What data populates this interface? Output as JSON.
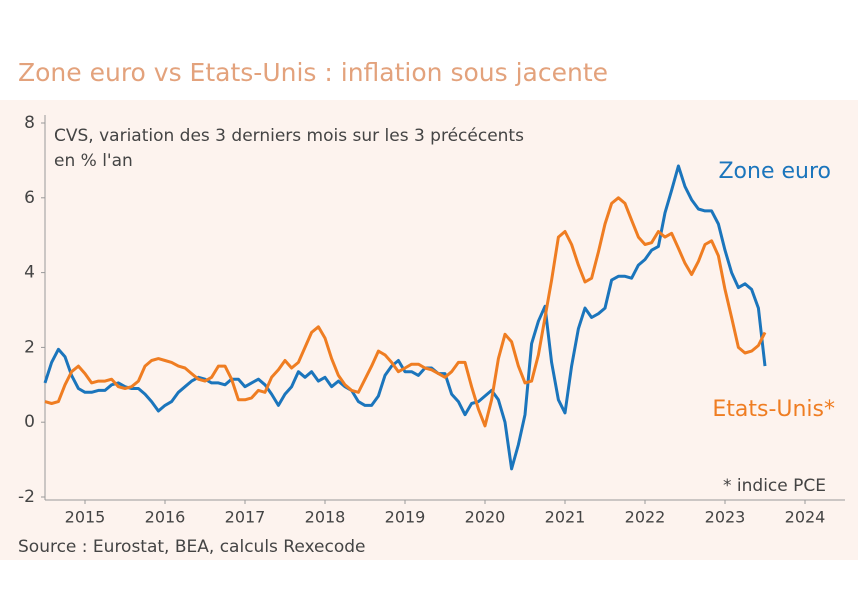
{
  "chart_data": {
    "type": "line",
    "title": "Zone euro vs Etats-Unis : inflation sous jacente",
    "subtitle": [
      "CVS, variation des 3 derniers mois sur les 3 précécents",
      "en % l'an"
    ],
    "note": "* indice PCE",
    "source": "Source : Eurostat, BEA, calculs Rexecode",
    "x": [
      2014.5,
      2014.583,
      2014.667,
      2014.75,
      2014.833,
      2014.917,
      2015,
      2015.083,
      2015.167,
      2015.25,
      2015.333,
      2015.417,
      2015.5,
      2015.583,
      2015.667,
      2015.75,
      2015.833,
      2015.917,
      2016,
      2016.083,
      2016.167,
      2016.25,
      2016.333,
      2016.417,
      2016.5,
      2016.583,
      2016.667,
      2016.75,
      2016.833,
      2016.917,
      2017,
      2017.083,
      2017.167,
      2017.25,
      2017.333,
      2017.417,
      2017.5,
      2017.583,
      2017.667,
      2017.75,
      2017.833,
      2017.917,
      2018,
      2018.083,
      2018.167,
      2018.25,
      2018.333,
      2018.417,
      2018.5,
      2018.583,
      2018.667,
      2018.75,
      2018.833,
      2018.917,
      2019,
      2019.083,
      2019.167,
      2019.25,
      2019.333,
      2019.417,
      2019.5,
      2019.583,
      2019.667,
      2019.75,
      2019.833,
      2019.917,
      2020,
      2020.083,
      2020.167,
      2020.25,
      2020.333,
      2020.417,
      2020.5,
      2020.583,
      2020.667,
      2020.75,
      2020.833,
      2020.917,
      2021,
      2021.083,
      2021.167,
      2021.25,
      2021.333,
      2021.417,
      2021.5,
      2021.583,
      2021.667,
      2021.75,
      2021.833,
      2021.917,
      2022,
      2022.083,
      2022.167,
      2022.25,
      2022.333,
      2022.417,
      2022.5,
      2022.583,
      2022.667,
      2022.75,
      2022.833,
      2022.917,
      2023,
      2023.083,
      2023.167,
      2023.25,
      2023.333,
      2023.417,
      2023.5
    ],
    "series": [
      {
        "name": "Zone euro",
        "color": "#1b75bc",
        "values": [
          1.05,
          1.6,
          1.95,
          1.75,
          1.25,
          0.9,
          0.8,
          0.8,
          0.85,
          0.85,
          1.0,
          1.05,
          0.95,
          0.9,
          0.9,
          0.75,
          0.55,
          0.3,
          0.45,
          0.55,
          0.8,
          0.95,
          1.1,
          1.2,
          1.15,
          1.05,
          1.05,
          1.0,
          1.15,
          1.15,
          0.95,
          1.05,
          1.15,
          1.0,
          0.75,
          0.45,
          0.75,
          0.95,
          1.35,
          1.2,
          1.35,
          1.1,
          1.2,
          0.95,
          1.1,
          0.95,
          0.85,
          0.55,
          0.45,
          0.45,
          0.7,
          1.25,
          1.5,
          1.65,
          1.35,
          1.35,
          1.25,
          1.45,
          1.45,
          1.3,
          1.3,
          0.75,
          0.55,
          0.2,
          0.5,
          0.55,
          0.7,
          0.85,
          0.6,
          0.0,
          -1.25,
          -0.6,
          0.2,
          2.1,
          2.7,
          3.1,
          1.6,
          0.6,
          0.25,
          1.5,
          2.5,
          3.05,
          2.8,
          2.9,
          3.05,
          3.8,
          3.9,
          3.9,
          3.85,
          4.2,
          4.35,
          4.6,
          4.7,
          5.6,
          6.2,
          6.85,
          6.3,
          5.95,
          5.7,
          5.65,
          5.65,
          5.3,
          4.6,
          4.0,
          3.6,
          3.7,
          3.55,
          3.05,
          1.5
        ]
      },
      {
        "name": "Etats-Unis*",
        "color": "#ef7d22",
        "values": [
          0.55,
          0.5,
          0.55,
          1.0,
          1.35,
          1.5,
          1.3,
          1.05,
          1.1,
          1.1,
          1.15,
          0.95,
          0.9,
          0.95,
          1.1,
          1.5,
          1.65,
          1.7,
          1.65,
          1.6,
          1.5,
          1.45,
          1.3,
          1.15,
          1.1,
          1.2,
          1.5,
          1.5,
          1.15,
          0.6,
          0.6,
          0.65,
          0.85,
          0.8,
          1.2,
          1.4,
          1.65,
          1.45,
          1.6,
          2.0,
          2.4,
          2.55,
          2.25,
          1.7,
          1.25,
          1.0,
          0.85,
          0.8,
          1.15,
          1.5,
          1.9,
          1.8,
          1.6,
          1.35,
          1.45,
          1.55,
          1.55,
          1.45,
          1.4,
          1.3,
          1.2,
          1.35,
          1.6,
          1.6,
          0.95,
          0.35,
          -0.1,
          0.6,
          1.7,
          2.35,
          2.15,
          1.5,
          1.05,
          1.1,
          1.8,
          2.8,
          3.8,
          4.95,
          5.1,
          4.75,
          4.2,
          3.75,
          3.85,
          4.55,
          5.3,
          5.85,
          6.0,
          5.85,
          5.4,
          4.95,
          4.75,
          4.8,
          5.1,
          4.95,
          5.05,
          4.65,
          4.25,
          3.95,
          4.3,
          4.75,
          4.85,
          4.45,
          3.55,
          2.8,
          2.0,
          1.85,
          1.9,
          2.05,
          2.4
        ]
      }
    ],
    "xlim": [
      2014.5,
      2024.5
    ],
    "xticks": [
      2015,
      2016,
      2017,
      2018,
      2019,
      2020,
      2021,
      2022,
      2023,
      2024
    ],
    "ylim": [
      -2,
      8
    ],
    "yticks": [
      -2,
      0,
      2,
      4,
      6,
      8
    ]
  }
}
